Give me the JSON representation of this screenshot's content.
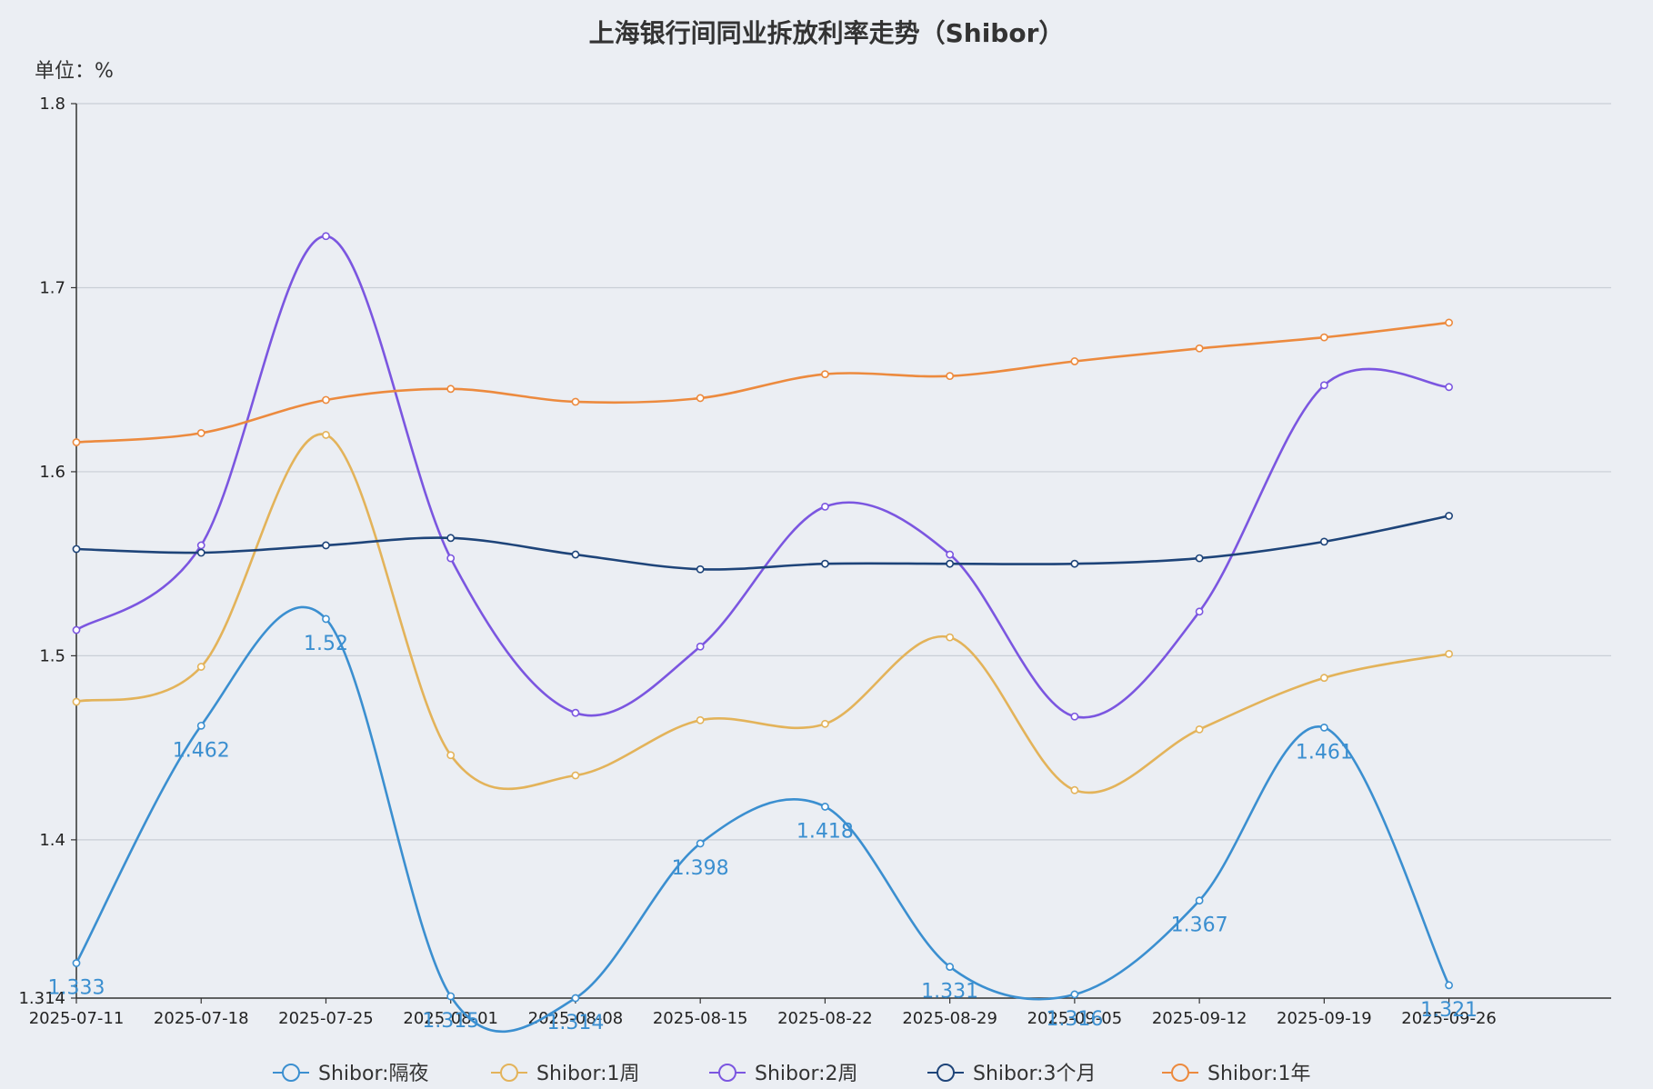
{
  "chart_data": {
    "type": "line",
    "title": "上海银行间同业拆放利率走势（Shibor）",
    "unit_label": "单位：%",
    "ylim": [
      1.314,
      1.8
    ],
    "yticks": [
      1.314,
      1.4,
      1.5,
      1.6,
      1.7,
      1.8
    ],
    "x_ticks": [
      "2025-07-11",
      "2025-07-18",
      "2025-07-25",
      "2025-08-01",
      "2025-08-08",
      "2025-08-15",
      "2025-08-22",
      "2025-08-29",
      "2025-09-05",
      "2025-09-12",
      "2025-09-19",
      "2025-09-26"
    ],
    "x": [
      "2025-07-11",
      "2025-07-18",
      "2025-07-25",
      "2025-08-01",
      "2025-08-08",
      "2025-08-15",
      "2025-08-22",
      "2025-08-29",
      "2025-09-05",
      "2025-09-12",
      "2025-09-19",
      "2025-09-26"
    ],
    "grid": true,
    "legend_position": "bottom",
    "series": [
      {
        "name": "Shibor:隔夜",
        "color": "#3b8fd0",
        "values": [
          1.333,
          1.462,
          1.52,
          1.315,
          1.314,
          1.398,
          1.418,
          1.331,
          1.316,
          1.367,
          1.461,
          1.321
        ],
        "labels": [
          "1.333",
          "1.462",
          "1.52",
          "1.315",
          "1.314",
          "1.398",
          "1.418",
          "1.331",
          "1.316",
          "1.367",
          "1.461",
          "1.321"
        ]
      },
      {
        "name": "Shibor:1周",
        "color": "#e3b35a",
        "values": [
          1.475,
          1.494,
          1.62,
          1.446,
          1.435,
          1.465,
          1.463,
          1.51,
          1.427,
          1.46,
          1.488,
          1.501
        ]
      },
      {
        "name": "Shibor:2周",
        "color": "#7b56e0",
        "values": [
          1.514,
          1.56,
          1.728,
          1.553,
          1.469,
          1.505,
          1.581,
          1.555,
          1.467,
          1.524,
          1.647,
          1.646
        ]
      },
      {
        "name": "Shibor:3个月",
        "color": "#1e4479",
        "values": [
          1.558,
          1.556,
          1.56,
          1.564,
          1.555,
          1.547,
          1.55,
          1.55,
          1.55,
          1.553,
          1.562,
          1.576
        ]
      },
      {
        "name": "Shibor:1年",
        "color": "#ec8a3e",
        "values": [
          1.616,
          1.621,
          1.639,
          1.645,
          1.638,
          1.64,
          1.653,
          1.652,
          1.66,
          1.667,
          1.673,
          1.681
        ]
      }
    ]
  }
}
